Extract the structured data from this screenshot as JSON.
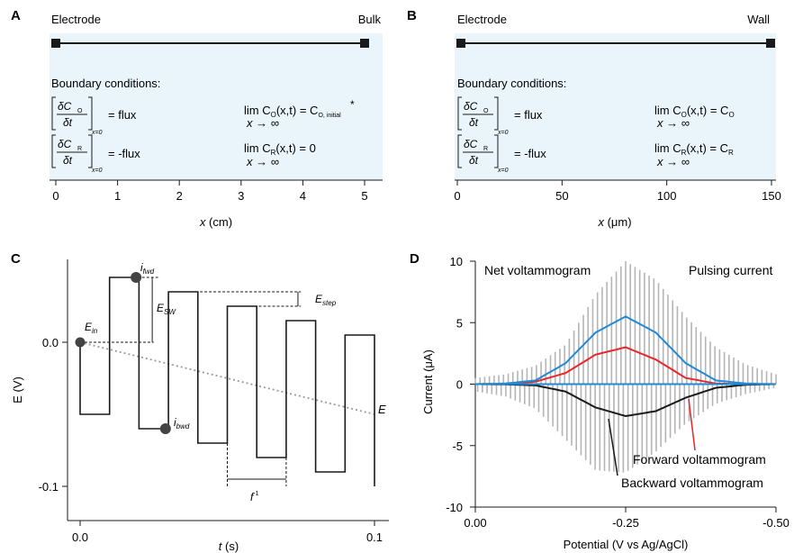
{
  "panels": {
    "A": {
      "letter": "A",
      "left_label": "Electrode",
      "right_label": "Bulk",
      "bc_title": "Boundary conditions:",
      "xlabel_var": "x",
      "xlabel_unit": " (cm)",
      "ticks": [
        "0",
        "1",
        "2",
        "3",
        "4",
        "5"
      ],
      "lhs1": "= flux",
      "lhs2": "= -flux",
      "lim1": "lim C",
      "lim1_sub": "O",
      "lim1_tail": "(x,t) = C",
      "lim1_rhs_sub": "O, initial",
      "lim1_star": "*",
      "lim2": "lim C",
      "lim2_sub": "R",
      "lim2_tail": "(x,t) = 0",
      "x_to_inf": "x → ∞",
      "frac_top1": "δC",
      "frac_top1_sub": "O",
      "frac_top2": "δC",
      "frac_top2_sub": "R",
      "frac_bot": "δt",
      "x_eq0": "x=0"
    },
    "B": {
      "letter": "B",
      "left_label": "Electrode",
      "right_label": "Wall",
      "bc_title": "Boundary conditions:",
      "xlabel_var": "x",
      "xlabel_unit": " (μm)",
      "ticks": [
        "0",
        "50",
        "100",
        "150"
      ],
      "lhs1": "= flux",
      "lhs2": "= -flux",
      "lim1": "lim C",
      "lim1_sub": "O",
      "lim1_tail": "(x,t) = C",
      "lim1_rhs_sub": "O",
      "lim2": "lim C",
      "lim2_sub": "R",
      "lim2_tail": "(x,t) = C",
      "lim2_rhs_sub": "R",
      "x_to_inf": "x → ∞",
      "frac_top1": "δC",
      "frac_top1_sub": "O",
      "frac_top2": "δC",
      "frac_top2_sub": "R",
      "frac_bot": "δt",
      "x_eq0": "x=0"
    },
    "C": {
      "letter": "C",
      "ylabel": "E (V)",
      "xlabel_var": "t",
      "xlabel_unit": " (s)",
      "xticks": [
        "0.0",
        "0.1"
      ],
      "yticks": [
        "0.0",
        "-0.1"
      ],
      "ann_ifwd": "i",
      "ann_ifwd_sub": "fwd",
      "ann_ibwd": "i",
      "ann_ibwd_sub": "bwd",
      "ann_ein": "E",
      "ann_ein_sub": "in",
      "ann_esw": "E",
      "ann_esw_sub": "SW",
      "ann_estep": "E",
      "ann_estep_sub": "step",
      "ann_e": "E",
      "ann_f": "f",
      "ann_f_sup": "-1"
    },
    "D": {
      "letter": "D",
      "ylabel": "Current (μA)",
      "xlabel": "Potential (V vs Ag/AgCl)",
      "xticks": [
        "0.00",
        "-0.25",
        "-0.50"
      ],
      "yticks": [
        "10",
        "5",
        "0",
        "-5",
        "-10"
      ],
      "label_net": "Net voltammogram",
      "label_pulse": "Pulsing current",
      "label_fwd": "Forward voltammogram",
      "label_bwd": "Backward voltammogram"
    }
  },
  "colors": {
    "box_fill": "#eaf5fb",
    "net": "#1f8ad6",
    "forward": "#e8262c",
    "backward": "#1a1a1a",
    "pulse": "#b5b5b5",
    "diag": "#9a9a9a"
  },
  "chart_data": [
    {
      "panel": "C",
      "type": "line",
      "xlabel": "t (s)",
      "ylabel": "E (V)",
      "xlim": [
        0.0,
        0.1
      ],
      "ylim": [
        -0.107,
        0.055
      ],
      "x": [
        0,
        0,
        0.01,
        0.01,
        0.02,
        0.02,
        0.03,
        0.03,
        0.04,
        0.04,
        0.05,
        0.05,
        0.06,
        0.06,
        0.07,
        0.07,
        0.08,
        0.08,
        0.09,
        0.09,
        0.1,
        0.1
      ],
      "y": [
        0.0,
        -0.05,
        -0.05,
        0.045,
        0.045,
        -0.06,
        -0.06,
        0.035,
        0.035,
        -0.07,
        -0.07,
        0.025,
        0.025,
        -0.08,
        -0.08,
        0.015,
        0.015,
        -0.09,
        -0.09,
        0.005,
        0.005,
        -0.1
      ],
      "staircase_line": {
        "x": [
          0,
          0.1
        ],
        "y": [
          0.0,
          -0.05
        ]
      }
    },
    {
      "panel": "D",
      "type": "line",
      "xlabel": "Potential (V vs Ag/AgCl)",
      "ylabel": "Current (μA)",
      "xlim": [
        0.0,
        -0.5
      ],
      "ylim": [
        -10,
        10
      ],
      "x": [
        0.0,
        -0.05,
        -0.1,
        -0.15,
        -0.2,
        -0.25,
        -0.3,
        -0.35,
        -0.4,
        -0.45,
        -0.5
      ],
      "series": [
        {
          "name": "Net voltammogram",
          "values": [
            0,
            0.05,
            0.3,
            1.7,
            4.2,
            5.5,
            4.2,
            1.7,
            0.3,
            0.05,
            0
          ]
        },
        {
          "name": "Forward voltammogram",
          "values": [
            0,
            0.03,
            0.2,
            0.9,
            2.4,
            3.0,
            2.0,
            0.5,
            0.05,
            0,
            0
          ]
        },
        {
          "name": "Backward voltammogram",
          "values": [
            0,
            -0.02,
            -0.1,
            -0.6,
            -1.9,
            -2.6,
            -2.2,
            -1.1,
            -0.3,
            -0.05,
            0
          ]
        },
        {
          "name": "Pulsing current",
          "envelope_upper": [
            0.5,
            0.8,
            1.5,
            3.2,
            7.3,
            10.0,
            8.5,
            5.5,
            3.0,
            1.6,
            0.8
          ],
          "envelope_lower": [
            -0.6,
            -1.0,
            -2.0,
            -4.5,
            -7.0,
            -7.2,
            -5.5,
            -3.2,
            -1.6,
            -0.8,
            -0.3
          ]
        }
      ]
    }
  ]
}
